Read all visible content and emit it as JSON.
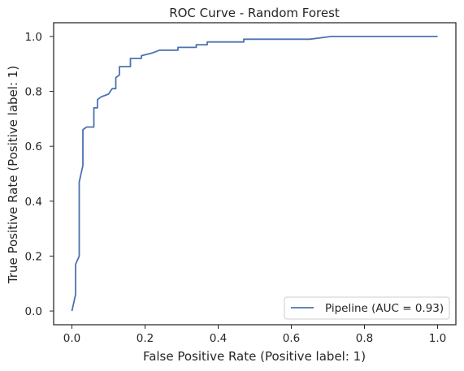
{
  "chart_data": {
    "type": "line",
    "title": "ROC Curve - Random Forest",
    "xlabel": "False Positive Rate (Positive label: 1)",
    "ylabel": "True Positive Rate (Positive label: 1)",
    "xlim": [
      -0.05,
      1.05
    ],
    "ylim": [
      -0.05,
      1.05
    ],
    "xticks": [
      0.0,
      0.2,
      0.4,
      0.6,
      0.8,
      1.0
    ],
    "yticks": [
      0.0,
      0.2,
      0.4,
      0.6,
      0.8,
      1.0
    ],
    "xtick_labels": [
      "0.0",
      "0.2",
      "0.4",
      "0.6",
      "0.8",
      "1.0"
    ],
    "ytick_labels": [
      "0.0",
      "0.2",
      "0.4",
      "0.6",
      "0.8",
      "1.0"
    ],
    "grid": false,
    "legend_position": "lower-right",
    "series": [
      {
        "name": "Pipeline (AUC = 0.93)",
        "color": "#4c72b0",
        "x": [
          0.0,
          0.01,
          0.01,
          0.02,
          0.02,
          0.03,
          0.03,
          0.04,
          0.04,
          0.05,
          0.06,
          0.06,
          0.07,
          0.07,
          0.08,
          0.1,
          0.11,
          0.12,
          0.12,
          0.13,
          0.13,
          0.16,
          0.16,
          0.19,
          0.19,
          0.22,
          0.24,
          0.24,
          0.29,
          0.29,
          0.34,
          0.34,
          0.37,
          0.37,
          0.47,
          0.47,
          0.65,
          0.71,
          1.0
        ],
        "y": [
          0.0,
          0.06,
          0.17,
          0.2,
          0.47,
          0.53,
          0.66,
          0.67,
          0.67,
          0.67,
          0.67,
          0.74,
          0.74,
          0.77,
          0.78,
          0.79,
          0.81,
          0.81,
          0.85,
          0.86,
          0.89,
          0.89,
          0.92,
          0.92,
          0.93,
          0.94,
          0.95,
          0.95,
          0.95,
          0.96,
          0.96,
          0.97,
          0.97,
          0.98,
          0.98,
          0.99,
          0.99,
          1.0,
          1.0
        ]
      }
    ]
  }
}
